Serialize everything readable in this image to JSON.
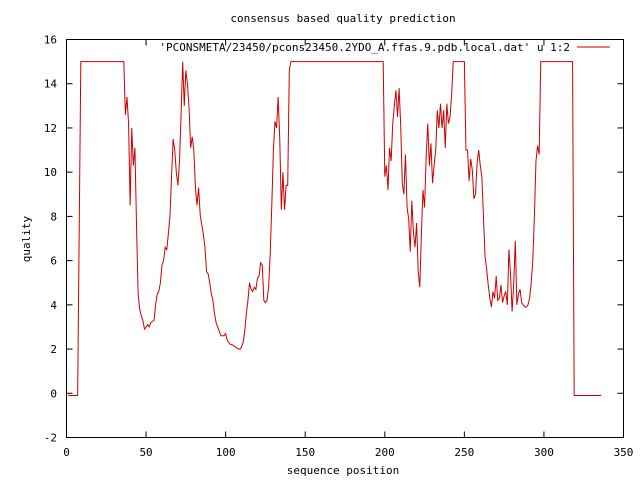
{
  "chart_data": {
    "type": "line",
    "title": "consensus based quality prediction",
    "xlabel": "sequence position",
    "ylabel": "quality",
    "xlim": [
      0,
      350
    ],
    "ylim": [
      -2,
      16
    ],
    "xticks": [
      "0",
      "50",
      "100",
      "150",
      "200",
      "250",
      "300",
      "350"
    ],
    "yticks": [
      "-2",
      "0",
      "2",
      "4",
      "6",
      "8",
      "10",
      "12",
      "14",
      "16"
    ],
    "grid": false,
    "legend_position": "top-right",
    "series": [
      {
        "name": "'PCONSMETA/23450/pcons23450.2YDO_A.ffas.9.pdb.local.dat' u 1:2",
        "color": "#cc0000",
        "points": [
          [
            1,
            -0.1
          ],
          [
            7,
            -0.1
          ],
          [
            8,
            7.5
          ],
          [
            9,
            15
          ],
          [
            36,
            15
          ],
          [
            37,
            12.6
          ],
          [
            38,
            13.4
          ],
          [
            39,
            12.2
          ],
          [
            40,
            8.5
          ],
          [
            41,
            12.0
          ],
          [
            42,
            10.3
          ],
          [
            43,
            11.1
          ],
          [
            44,
            7.6
          ],
          [
            45,
            4.5
          ],
          [
            46,
            3.8
          ],
          [
            47,
            3.5
          ],
          [
            48,
            3.3
          ],
          [
            49,
            2.9
          ],
          [
            50,
            3.0
          ],
          [
            51,
            3.1
          ],
          [
            52,
            3.0
          ],
          [
            53,
            3.2
          ],
          [
            55,
            3.3
          ],
          [
            56,
            4.0
          ],
          [
            57,
            4.5
          ],
          [
            58,
            4.6
          ],
          [
            59,
            5.0
          ],
          [
            60,
            5.8
          ],
          [
            61,
            6.0
          ],
          [
            62,
            6.6
          ],
          [
            63,
            6.5
          ],
          [
            64,
            7.2
          ],
          [
            65,
            8.0
          ],
          [
            66,
            9.8
          ],
          [
            67,
            11.5
          ],
          [
            68,
            11.0
          ],
          [
            69,
            10.0
          ],
          [
            70,
            9.4
          ],
          [
            71,
            10.5
          ],
          [
            72,
            12.6
          ],
          [
            73,
            15.0
          ],
          [
            74,
            13.0
          ],
          [
            75,
            14.6
          ],
          [
            76,
            14.0
          ],
          [
            77,
            12.9
          ],
          [
            78,
            11.1
          ],
          [
            79,
            11.6
          ],
          [
            80,
            11.0
          ],
          [
            81,
            9.3
          ],
          [
            82,
            8.5
          ],
          [
            83,
            9.3
          ],
          [
            84,
            8.1
          ],
          [
            85,
            7.6
          ],
          [
            86,
            7.2
          ],
          [
            87,
            6.6
          ],
          [
            88,
            5.5
          ],
          [
            89,
            5.4
          ],
          [
            90,
            5.0
          ],
          [
            91,
            4.5
          ],
          [
            92,
            4.2
          ],
          [
            93,
            3.6
          ],
          [
            94,
            3.2
          ],
          [
            95,
            3.0
          ],
          [
            96,
            2.8
          ],
          [
            97,
            2.6
          ],
          [
            98,
            2.6
          ],
          [
            99,
            2.6
          ],
          [
            100,
            2.7
          ],
          [
            101,
            2.4
          ],
          [
            102,
            2.3
          ],
          [
            103,
            2.2
          ],
          [
            104,
            2.2
          ],
          [
            106,
            2.1
          ],
          [
            108,
            2.0
          ],
          [
            109,
            2.0
          ],
          [
            110,
            2.1
          ],
          [
            111,
            2.3
          ],
          [
            112,
            2.8
          ],
          [
            113,
            3.6
          ],
          [
            114,
            4.2
          ],
          [
            115,
            5.0
          ],
          [
            116,
            4.7
          ],
          [
            117,
            4.6
          ],
          [
            118,
            4.8
          ],
          [
            119,
            4.7
          ],
          [
            120,
            5.2
          ],
          [
            121,
            5.3
          ],
          [
            122,
            5.9
          ],
          [
            123,
            5.8
          ],
          [
            124,
            4.2
          ],
          [
            125,
            4.1
          ],
          [
            126,
            4.2
          ],
          [
            127,
            4.8
          ],
          [
            128,
            6.3
          ],
          [
            129,
            8.5
          ],
          [
            130,
            11.0
          ],
          [
            131,
            12.3
          ],
          [
            132,
            12.0
          ],
          [
            133,
            13.4
          ],
          [
            134,
            11.5
          ],
          [
            135,
            8.3
          ],
          [
            136,
            10.0
          ],
          [
            137,
            8.3
          ],
          [
            138,
            9.4
          ],
          [
            139,
            9.4
          ],
          [
            140,
            14.6
          ],
          [
            141,
            15
          ],
          [
            199,
            15
          ],
          [
            200,
            9.8
          ],
          [
            201,
            10.3
          ],
          [
            202,
            9.2
          ],
          [
            203,
            11.1
          ],
          [
            204,
            10.5
          ],
          [
            205,
            12.2
          ],
          [
            206,
            13.0
          ],
          [
            207,
            13.7
          ],
          [
            208,
            12.5
          ],
          [
            209,
            13.8
          ],
          [
            210,
            12.1
          ],
          [
            211,
            9.5
          ],
          [
            212,
            9.0
          ],
          [
            213,
            10.8
          ],
          [
            214,
            8.4
          ],
          [
            215,
            7.9
          ],
          [
            216,
            6.4
          ],
          [
            217,
            8.7
          ],
          [
            218,
            7.3
          ],
          [
            219,
            6.6
          ],
          [
            220,
            7.7
          ],
          [
            221,
            5.5
          ],
          [
            222,
            4.8
          ],
          [
            223,
            7.2
          ],
          [
            224,
            9.2
          ],
          [
            225,
            8.4
          ],
          [
            226,
            10.7
          ],
          [
            227,
            12.2
          ],
          [
            228,
            10.3
          ],
          [
            229,
            11.3
          ],
          [
            230,
            9.5
          ],
          [
            231,
            10.3
          ],
          [
            232,
            11.0
          ],
          [
            233,
            12.8
          ],
          [
            234,
            12.0
          ],
          [
            235,
            13.1
          ],
          [
            236,
            12.0
          ],
          [
            237,
            12.8
          ],
          [
            238,
            11.1
          ],
          [
            239,
            13.1
          ],
          [
            240,
            12.2
          ],
          [
            241,
            12.5
          ],
          [
            242,
            13.5
          ],
          [
            243,
            15
          ],
          [
            250,
            15
          ],
          [
            251,
            11.0
          ],
          [
            252,
            11.0
          ],
          [
            253,
            9.6
          ],
          [
            254,
            10.6
          ],
          [
            255,
            10.1
          ],
          [
            256,
            8.8
          ],
          [
            257,
            9.0
          ],
          [
            258,
            10.4
          ],
          [
            259,
            11.0
          ],
          [
            260,
            10.3
          ],
          [
            261,
            9.8
          ],
          [
            262,
            8.0
          ],
          [
            263,
            6.2
          ],
          [
            264,
            5.6
          ],
          [
            265,
            4.9
          ],
          [
            266,
            4.3
          ],
          [
            267,
            3.9
          ],
          [
            268,
            4.6
          ],
          [
            269,
            4.3
          ],
          [
            270,
            5.3
          ],
          [
            271,
            4.2
          ],
          [
            272,
            4.3
          ],
          [
            273,
            4.9
          ],
          [
            274,
            4.1
          ],
          [
            275,
            4.4
          ],
          [
            276,
            4.6
          ],
          [
            277,
            4.0
          ],
          [
            278,
            6.5
          ],
          [
            279,
            5.4
          ],
          [
            280,
            3.7
          ],
          [
            281,
            4.9
          ],
          [
            282,
            6.9
          ],
          [
            283,
            4.0
          ],
          [
            284,
            4.5
          ],
          [
            285,
            4.7
          ],
          [
            286,
            4.1
          ],
          [
            287,
            4.0
          ],
          [
            288,
            3.9
          ],
          [
            289,
            3.9
          ],
          [
            290,
            4.0
          ],
          [
            291,
            4.3
          ],
          [
            292,
            5.0
          ],
          [
            293,
            6.0
          ],
          [
            294,
            8.0
          ],
          [
            295,
            10.5
          ],
          [
            296,
            11.2
          ],
          [
            297,
            10.8
          ],
          [
            298,
            15
          ],
          [
            318,
            15
          ],
          [
            319,
            -0.1
          ],
          [
            336,
            -0.1
          ]
        ]
      }
    ]
  }
}
